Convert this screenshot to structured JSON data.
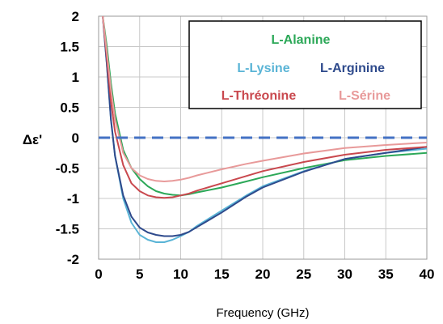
{
  "chart_data": {
    "type": "line",
    "title": "",
    "xlabel": "Frequency (GHz)",
    "ylabel": "Δε'",
    "xlim": [
      0,
      40
    ],
    "ylim": [
      -2,
      2
    ],
    "xticks": [
      "0",
      "5",
      "10",
      "15",
      "20",
      "25",
      "30",
      "35",
      "40"
    ],
    "yticks": [
      "2",
      "1.5",
      "1",
      "0.5",
      "0",
      "-0.5",
      "-1",
      "-1.5",
      "-2"
    ],
    "grid": true,
    "legend_position": "top-right",
    "zero_line": {
      "y": 0,
      "style": "dashed",
      "color": "#4472c4"
    },
    "series": [
      {
        "name": "L-Alanine",
        "color": "#2ca858",
        "x": [
          0.5,
          1,
          1.5,
          2,
          3,
          4,
          5,
          6,
          7,
          8,
          9,
          10,
          11,
          12,
          15,
          18,
          20,
          25,
          30,
          35,
          40
        ],
        "y": [
          2.0,
          1.5,
          0.9,
          0.4,
          -0.2,
          -0.5,
          -0.68,
          -0.8,
          -0.88,
          -0.92,
          -0.94,
          -0.95,
          -0.93,
          -0.9,
          -0.82,
          -0.72,
          -0.65,
          -0.5,
          -0.37,
          -0.3,
          -0.25
        ]
      },
      {
        "name": "L-Lysine",
        "color": "#5ab4d6",
        "x": [
          0.5,
          1,
          1.5,
          2,
          3,
          4,
          5,
          6,
          7,
          8,
          9,
          10,
          11,
          12,
          15,
          18,
          20,
          25,
          30,
          35,
          40
        ],
        "y": [
          2.0,
          1.2,
          0.3,
          -0.3,
          -1.0,
          -1.4,
          -1.6,
          -1.68,
          -1.72,
          -1.72,
          -1.68,
          -1.62,
          -1.55,
          -1.45,
          -1.2,
          -0.95,
          -0.8,
          -0.55,
          -0.35,
          -0.25,
          -0.18
        ]
      },
      {
        "name": "L-Arginine",
        "color": "#2e4a8c",
        "x": [
          0.5,
          1,
          1.5,
          2,
          3,
          4,
          5,
          6,
          7,
          8,
          9,
          10,
          11,
          12,
          15,
          18,
          20,
          25,
          30,
          35,
          40
        ],
        "y": [
          2.0,
          1.2,
          0.3,
          -0.3,
          -0.95,
          -1.3,
          -1.48,
          -1.56,
          -1.6,
          -1.62,
          -1.62,
          -1.6,
          -1.55,
          -1.47,
          -1.23,
          -0.97,
          -0.82,
          -0.56,
          -0.35,
          -0.25,
          -0.15
        ]
      },
      {
        "name": "L-Thréonine",
        "color": "#c9484e",
        "x": [
          0.5,
          1,
          1.5,
          2,
          3,
          4,
          5,
          6,
          7,
          8,
          9,
          10,
          11,
          12,
          15,
          18,
          20,
          25,
          30,
          35,
          40
        ],
        "y": [
          2.0,
          1.3,
          0.6,
          0.1,
          -0.45,
          -0.75,
          -0.88,
          -0.95,
          -0.98,
          -0.99,
          -0.98,
          -0.95,
          -0.92,
          -0.87,
          -0.75,
          -0.63,
          -0.55,
          -0.4,
          -0.28,
          -0.2,
          -0.15
        ]
      },
      {
        "name": "L-Sérine",
        "color": "#e89a9a",
        "x": [
          0.5,
          1,
          1.5,
          2,
          3,
          4,
          5,
          6,
          7,
          8,
          9,
          10,
          11,
          12,
          15,
          18,
          20,
          25,
          30,
          35,
          40
        ],
        "y": [
          2.0,
          1.4,
          0.8,
          0.3,
          -0.25,
          -0.5,
          -0.62,
          -0.68,
          -0.71,
          -0.72,
          -0.71,
          -0.69,
          -0.66,
          -0.62,
          -0.52,
          -0.43,
          -0.38,
          -0.26,
          -0.17,
          -0.12,
          -0.08
        ]
      }
    ]
  }
}
